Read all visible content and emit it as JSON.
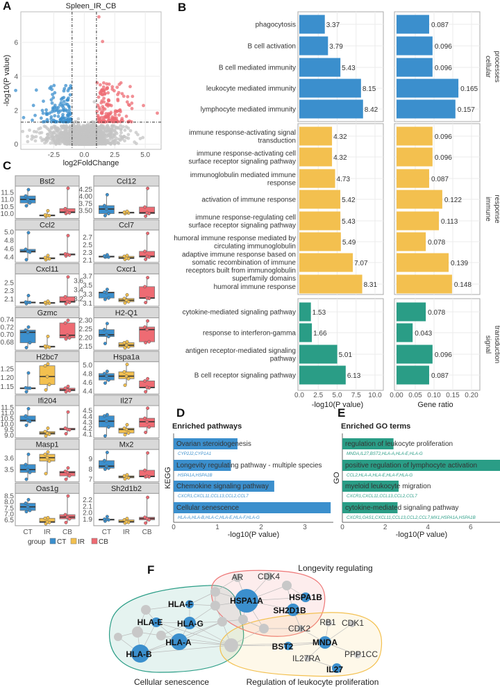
{
  "colors": {
    "blue": "#3b8fcd",
    "yellow": "#f3c04f",
    "teal": "#2a9d86",
    "red": "#ee6b73",
    "gray": "#c4c4c4"
  },
  "panel_letters": [
    "A",
    "B",
    "C",
    "D",
    "E",
    "F"
  ],
  "chart_data": [
    {
      "id": "A",
      "type": "scatter",
      "title": "Spleen_IR_CB",
      "xlabel": "log2FoldChange",
      "ylabel": "-log10(P value)",
      "xticks": [
        -2.5,
        0.0,
        2.5,
        5.0
      ],
      "xtick_labels": [
        "-2.5",
        "0.0",
        "2.5",
        "5.0"
      ],
      "yticks": [
        0,
        2,
        4,
        6
      ],
      "xlim": [
        -5.2,
        6.3
      ],
      "ylim": [
        -0.3,
        7.8
      ],
      "fc_threshold": 1,
      "p_threshold_log": 1.3,
      "legend": "none"
    },
    {
      "id": "B",
      "type": "bar",
      "left_xlabel": "-log10(P value)",
      "right_xlabel": "Gene ratio",
      "left_xticks": [
        "0.0",
        "2.5",
        "5.0",
        "7.5",
        "10.0"
      ],
      "left_tick_values": [
        0,
        2.5,
        5,
        7.5,
        10
      ],
      "right_xticks": [
        "0.00",
        "0.05",
        "0.10",
        "0.15",
        "0.20"
      ],
      "right_tick_values": [
        0,
        0.05,
        0.1,
        0.15,
        0.2
      ],
      "groups": [
        {
          "name": [
            "cellular",
            "processes"
          ],
          "color": "blue",
          "terms": [
            {
              "label": [
                "phagocytosis"
              ],
              "p": 3.37,
              "ratio": 0.087
            },
            {
              "label": [
                "B cell activation"
              ],
              "p": 3.79,
              "ratio": 0.096
            },
            {
              "label": [
                "B cell mediated immunity"
              ],
              "p": 5.43,
              "ratio": 0.096
            },
            {
              "label": [
                "leukocyte mediated immunity"
              ],
              "p": 8.15,
              "ratio": 0.165
            },
            {
              "label": [
                "lymphocyte mediated immunity"
              ],
              "p": 8.42,
              "ratio": 0.157
            }
          ]
        },
        {
          "name": [
            "immune",
            "response"
          ],
          "color": "yellow",
          "terms": [
            {
              "label": [
                "immune response-activating signal",
                "transduction"
              ],
              "p": 4.32,
              "ratio": 0.096
            },
            {
              "label": [
                "immune response-activating cell",
                "surface receptor signaling pathway"
              ],
              "p": 4.32,
              "ratio": 0.096
            },
            {
              "label": [
                "immunoglobulin mediated immune",
                "response"
              ],
              "p": 4.73,
              "ratio": 0.087
            },
            {
              "label": [
                "activation of immune response"
              ],
              "p": 5.42,
              "ratio": 0.122
            },
            {
              "label": [
                "immune response-regulating cell",
                "surface receptor signaling pathway"
              ],
              "p": 5.43,
              "ratio": 0.113
            },
            {
              "label": [
                "humoral immune response mediated by",
                "circulating immunoglobulin"
              ],
              "p": 5.49,
              "ratio": 0.078
            },
            {
              "label": [
                "adaptive immune response based on",
                "somatic recombination of immune",
                "receptors built from immunoglobulin",
                "superfamily domains"
              ],
              "p": 7.07,
              "ratio": 0.139
            },
            {
              "label": [
                "humoral immune response"
              ],
              "p": 8.31,
              "ratio": 0.148
            }
          ]
        },
        {
          "name": [
            "signal",
            "transduction"
          ],
          "color": "teal",
          "terms": [
            {
              "label": [
                "cytokine-mediated signaling pathway"
              ],
              "p": 1.53,
              "ratio": 0.078
            },
            {
              "label": [
                "response to interferon-gamma"
              ],
              "p": 1.66,
              "ratio": 0.043
            },
            {
              "label": [
                "antigen receptor-mediated signaling",
                "pathway"
              ],
              "p": 5.01,
              "ratio": 0.096
            },
            {
              "label": [
                "B cell receptor signaling pathway"
              ],
              "p": 6.13,
              "ratio": 0.087
            }
          ]
        }
      ]
    },
    {
      "id": "C",
      "type": "box",
      "categories": [
        "CT",
        "IR",
        "CB"
      ],
      "legend_title": "group",
      "legend": "bottom",
      "genes": [
        {
          "name": "Bst2",
          "ticks": [
            "10.0",
            "10.5",
            "11.0",
            "11.5"
          ],
          "tv": [
            10,
            10.5,
            11,
            11.5
          ],
          "ylim": [
            9.8,
            11.9
          ],
          "box": [
            [
              10.6,
              10.8,
              11.05,
              11.3,
              11.75
            ],
            [
              9.85,
              9.9,
              9.92,
              9.95,
              10.25
            ],
            [
              10.05,
              10.1,
              10.15,
              10.4,
              11.85
            ]
          ]
        },
        {
          "name": "Ccl12",
          "ticks": [
            "3.50",
            "3.75",
            "4.00",
            "4.25"
          ],
          "tv": [
            3.5,
            3.75,
            4,
            4.25
          ],
          "ylim": [
            3.3,
            4.33
          ],
          "box": [
            [
              3.35,
              3.42,
              3.58,
              3.7,
              4.08
            ],
            [
              3.42,
              3.44,
              3.46,
              3.47,
              3.5
            ],
            [
              3.33,
              3.42,
              3.45,
              3.65,
              4.3
            ]
          ]
        },
        {
          "name": "Ccl2",
          "ticks": [
            "4.4",
            "4.6",
            "4.8",
            "5.0"
          ],
          "tv": [
            4.4,
            4.6,
            4.8,
            5.0
          ],
          "ylim": [
            4.32,
            5.03
          ],
          "box": [
            [
              4.35,
              4.53,
              4.55,
              4.6,
              5.0
            ],
            [
              4.35,
              4.37,
              4.38,
              4.4,
              4.45
            ],
            [
              4.44,
              4.46,
              4.48,
              4.49,
              4.93
            ]
          ]
        },
        {
          "name": "Ccl7",
          "ticks": [
            "2.1",
            "2.3",
            "2.5",
            "2.7"
          ],
          "tv": [
            2.1,
            2.3,
            2.5,
            2.7
          ],
          "ylim": [
            2.1,
            2.87
          ],
          "box": [
            [
              2.2,
              2.2,
              2.21,
              2.23,
              2.26
            ],
            [
              2.14,
              2.16,
              2.18,
              2.22,
              2.24
            ],
            [
              2.14,
              2.2,
              2.22,
              2.35,
              2.82
            ]
          ]
        },
        {
          "name": "Cxcl11",
          "ticks": [
            "2.1",
            "2.3",
            "2.5"
          ],
          "tv": [
            2.1,
            2.3,
            2.5
          ],
          "ylim": [
            1.97,
            2.7
          ],
          "box": [
            [
              2.0,
              2.03,
              2.03,
              2.04,
              2.2
            ],
            [
              2.0,
              2.01,
              2.02,
              2.03,
              2.06
            ],
            [
              2.0,
              2.03,
              2.05,
              2.17,
              2.66
            ]
          ]
        },
        {
          "name": "Cxcr1",
          "ticks": [
            "3.1",
            "3.2",
            "3.3",
            "3.4",
            "3.5",
            "3.6",
            "3.7"
          ],
          "tv": [
            3.1,
            3.2,
            3.3,
            3.4,
            3.5,
            3.6,
            3.7
          ],
          "ylim": [
            3.08,
            3.73
          ],
          "box": [
            [
              3.2,
              3.23,
              3.35,
              3.36,
              3.42
            ],
            [
              3.12,
              3.15,
              3.18,
              3.22,
              3.3
            ],
            [
              3.13,
              3.22,
              3.23,
              3.48,
              3.68
            ]
          ]
        },
        {
          "name": "Gzmc",
          "ticks": [
            "0.68",
            "0.70",
            "0.72",
            "0.74"
          ],
          "tv": [
            0.68,
            0.7,
            0.72,
            0.74
          ],
          "ylim": [
            0.664,
            0.743
          ],
          "box": [
            [
              0.667,
              0.68,
              0.708,
              0.714,
              0.722
            ],
            [
              0.667,
              0.668,
              0.67,
              0.671,
              0.697
            ],
            [
              0.69,
              0.693,
              0.7,
              0.733,
              0.74
            ]
          ]
        },
        {
          "name": "H2-Q1",
          "ticks": [
            "2.15",
            "2.20",
            "2.25",
            "2.30"
          ],
          "tv": [
            2.15,
            2.2,
            2.25,
            2.3
          ],
          "ylim": [
            2.14,
            2.31
          ],
          "box": [
            [
              2.17,
              2.21,
              2.22,
              2.25,
              2.285
            ],
            [
              2.145,
              2.15,
              2.16,
              2.175,
              2.18
            ],
            [
              2.175,
              2.18,
              2.25,
              2.265,
              2.3
            ]
          ]
        },
        {
          "name": "H2bc7",
          "ticks": [
            "1.15",
            "1.20",
            "1.25"
          ],
          "tv": [
            1.15,
            1.2,
            1.25
          ],
          "ylim": [
            1.12,
            1.285
          ],
          "box": [
            [
              1.125,
              1.145,
              1.145,
              1.147,
              1.23
            ],
            [
              1.135,
              1.165,
              1.21,
              1.27,
              1.28
            ],
            [
              1.125,
              1.13,
              1.135,
              1.145,
              1.155
            ]
          ]
        },
        {
          "name": "Hspa1a",
          "ticks": [
            "4.4",
            "4.6",
            "4.8",
            "5.0"
          ],
          "tv": [
            4.4,
            4.6,
            4.8,
            5.0
          ],
          "ylim": [
            4.38,
            5.06
          ],
          "box": [
            [
              4.6,
              4.67,
              4.76,
              4.82,
              4.87
            ],
            [
              4.55,
              4.7,
              4.76,
              4.86,
              5.03
            ],
            [
              4.4,
              4.49,
              4.5,
              4.65,
              4.7
            ]
          ]
        },
        {
          "name": "Ifi204",
          "ticks": [
            "9.0",
            "9.5",
            "10.0",
            "10.5",
            "11.0",
            "11.5"
          ],
          "tv": [
            9,
            9.5,
            10,
            10.5,
            11,
            11.5
          ],
          "ylim": [
            8.95,
            11.6
          ],
          "box": [
            [
              9.95,
              10.3,
              10.4,
              10.8,
              11.45
            ],
            [
              9.0,
              9.15,
              9.25,
              9.4,
              9.7
            ],
            [
              9.2,
              9.55,
              9.6,
              9.7,
              11.15
            ]
          ]
        },
        {
          "name": "Il27",
          "ticks": [
            "4.1",
            "4.2",
            "4.3",
            "4.4",
            "4.5"
          ],
          "tv": [
            4.1,
            4.2,
            4.3,
            4.4,
            4.5
          ],
          "ylim": [
            4.07,
            4.57
          ],
          "box": [
            [
              4.08,
              4.23,
              4.33,
              4.42,
              4.44
            ],
            [
              4.1,
              4.13,
              4.19,
              4.21,
              4.27
            ],
            [
              4.14,
              4.23,
              4.32,
              4.38,
              4.55
            ]
          ]
        },
        {
          "name": "Masp1",
          "ticks": [
            "3.5",
            "3.6"
          ],
          "tv": [
            3.5,
            3.6
          ],
          "ylim": [
            3.41,
            3.67
          ],
          "box": [
            [
              3.42,
              3.48,
              3.505,
              3.55,
              3.64
            ],
            [
              3.47,
              3.58,
              3.61,
              3.64,
              3.66
            ],
            [
              3.42,
              3.45,
              3.48,
              3.49,
              3.52
            ]
          ]
        },
        {
          "name": "Mx2",
          "ticks": [
            "7",
            "8",
            "9"
          ],
          "tv": [
            7,
            8,
            9
          ],
          "ylim": [
            6.95,
            9.85
          ],
          "box": [
            [
              8.05,
              8.15,
              8.35,
              8.9,
              9.7
            ],
            [
              7.1,
              7.2,
              7.3,
              7.4,
              7.5
            ],
            [
              7.3,
              7.3,
              7.35,
              7.95,
              9.65
            ]
          ]
        },
        {
          "name": "Oas1g",
          "ticks": [
            "6.5",
            "7.0",
            "7.5",
            "8.0",
            "8.5"
          ],
          "tv": [
            6.5,
            7,
            7.5,
            8,
            8.5
          ],
          "ylim": [
            6.2,
            8.65
          ],
          "box": [
            [
              7.25,
              7.35,
              7.65,
              7.95,
              8.25
            ],
            [
              6.25,
              6.35,
              6.4,
              6.7,
              6.75
            ],
            [
              6.35,
              6.65,
              6.8,
              7.0,
              8.55
            ]
          ]
        },
        {
          "name": "Sh2d1b2",
          "ticks": [
            "1.9",
            "2.0",
            "2.1",
            "2.2"
          ],
          "tv": [
            1.9,
            2.0,
            2.1,
            2.2
          ],
          "ylim": [
            1.83,
            2.29
          ],
          "box": [
            [
              1.88,
              1.9,
              1.905,
              1.91,
              1.95
            ],
            [
              1.85,
              1.86,
              1.87,
              1.9,
              1.92
            ],
            [
              1.85,
              1.9,
              1.92,
              1.94,
              2.25
            ]
          ]
        }
      ]
    },
    {
      "id": "D",
      "type": "bar",
      "title": "Enriched pathways",
      "ylabel": "KEGG",
      "xlabel": "-log10(P value)",
      "xticks": [
        0,
        1,
        2,
        3
      ],
      "xlim": [
        0,
        3.65
      ],
      "color": "blue",
      "bars": [
        {
          "term": "Ovarian steroidogenesis",
          "value": 1.46,
          "genes": "CYP2J2,CYP1A1"
        },
        {
          "term": "Longevity regulating pathway - multiple species",
          "value": 1.31,
          "genes": "HSPA1A,HSPA1B"
        },
        {
          "term": "Chemokine signaling pathway",
          "value": 2.3,
          "genes": "CXCR1,CXCL11,CCL13,CCL2,CCL7"
        },
        {
          "term": "Cellular senescence",
          "value": 3.59,
          "genes": "HLA-A,HLA-B,HLA-C,HLA-E,HLA-F,HLA-G"
        }
      ]
    },
    {
      "id": "E",
      "type": "bar",
      "title": "Enriched GO terms",
      "ylabel": "GO",
      "xlabel": "-log10(P value)",
      "xticks": [
        0,
        2,
        4,
        6
      ],
      "xlim": [
        0,
        7.4
      ],
      "color": "teal",
      "bars": [
        {
          "term": "regulation of leukocyte proliferation",
          "value": 2.39,
          "genes": "MNDA,IL27,BST2,HLA-A,HLA-E,HLA-G"
        },
        {
          "term": "positive regulation of lymphocyte activation",
          "value": 7.37,
          "genes": "CCL2,HLA-A,HLA-E,HLA-F,HLA-G"
        },
        {
          "term": "myeloid leukocyte migration",
          "value": 2.63,
          "genes": "CXCR1,CXCL11,CCL13,CCL2,CCL7"
        },
        {
          "term": "cytokine-mediated signaling pathway",
          "value": 2.58,
          "genes": "CXCR1,OAS1,CXCL11,CCL13,CCL2,CCL7,MX1,HSPA1A,HSPA1B"
        }
      ]
    }
  ],
  "network": {
    "clusters": [
      "Longevity regulating",
      "Cellular senescence",
      "Regulation of leukocyte proliferation"
    ],
    "highlighted_nodes": [
      "HSPA1A",
      "HSPA1B",
      "SH2D1B",
      "HLA-F",
      "HLA-E",
      "HLA-G",
      "HLA-A",
      "HLA-B",
      "BST2",
      "MNDA",
      "IL27"
    ],
    "other_labeled_nodes": [
      "AR",
      "CDK4",
      "CDK2",
      "RB1",
      "CDK1",
      "IL27RA",
      "PPP1CC"
    ]
  }
}
